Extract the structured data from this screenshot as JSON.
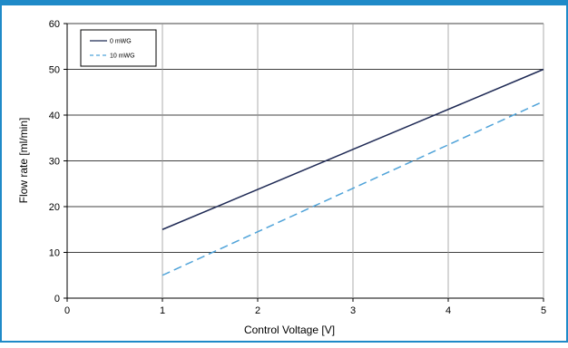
{
  "chart_data": {
    "type": "line",
    "xlabel": "Control Voltage [V]",
    "ylabel": "Flow rate [ml/min]",
    "xlim": [
      0,
      5
    ],
    "ylim": [
      0,
      60
    ],
    "x_ticks": [
      "0",
      "1",
      "2",
      "3",
      "4",
      "5"
    ],
    "y_ticks": [
      "0",
      "10",
      "20",
      "30",
      "40",
      "50",
      "60"
    ],
    "grid": true,
    "legend_position": "top-left",
    "series": [
      {
        "name": "0 mWG",
        "x": [
          1,
          5
        ],
        "y": [
          15,
          50
        ],
        "color": "#1f2a55",
        "style": "solid"
      },
      {
        "name": "10 mWG",
        "x": [
          1,
          5
        ],
        "y": [
          5,
          43
        ],
        "color": "#4fa3d9",
        "style": "dashed"
      }
    ]
  },
  "colors": {
    "frame_border": "#1f8ac8",
    "grid": "#999999",
    "axis": "#000000"
  }
}
